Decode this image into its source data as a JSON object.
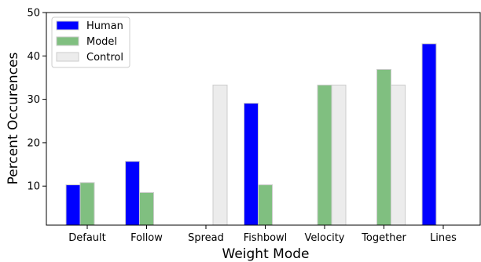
{
  "chart_data": {
    "type": "bar",
    "categories": [
      "Default",
      "Follow",
      "Spread",
      "Fishbowl",
      "Velocity",
      "Together",
      "Lines"
    ],
    "series": [
      {
        "name": "Human",
        "color": "#0000ff",
        "values": [
          10.3,
          15.7,
          0,
          29.1,
          0,
          0,
          42.8
        ]
      },
      {
        "name": "Model",
        "color": "#80bf80",
        "values": [
          10.8,
          8.5,
          0,
          10.3,
          33.3,
          36.9,
          0
        ]
      },
      {
        "name": "Control",
        "color": "#ececec",
        "values": [
          0,
          0,
          33.3,
          0,
          33.3,
          33.3,
          0
        ]
      }
    ],
    "xlabel": "Weight Mode",
    "ylabel": "Percent Occurences",
    "ylim": [
      1,
      50
    ],
    "yticks": [
      10,
      20,
      30,
      40,
      50
    ],
    "grid": false,
    "legend_position": "top-left"
  }
}
